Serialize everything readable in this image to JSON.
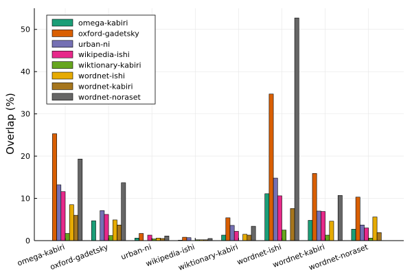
{
  "chart_data": {
    "type": "bar",
    "title": "",
    "xlabel": "",
    "ylabel": "Overlap (%)",
    "ylim": [
      0,
      55
    ],
    "yticks": [
      0,
      10,
      20,
      30,
      40,
      50
    ],
    "grid": true,
    "legend_position": "top-left",
    "categories": [
      "omega-kabiri",
      "oxford-gadetsky",
      "urban-ni",
      "wikipedia-ishi",
      "wiktionary-kabiri",
      "wordnet-ishi",
      "wordnet-kabiri",
      "wordnet-noraset"
    ],
    "series": [
      {
        "name": "omega-kabiri",
        "color": "#1b9e77",
        "values": [
          0,
          4.7,
          0.6,
          0.1,
          1.3,
          11.1,
          4.8,
          2.7
        ]
      },
      {
        "name": "oxford-gadetsky",
        "color": "#d95f02",
        "values": [
          25.3,
          0,
          1.7,
          0.8,
          5.4,
          34.7,
          15.9,
          10.3
        ]
      },
      {
        "name": "urban-ni",
        "color": "#7570b3",
        "values": [
          13.2,
          7.1,
          0,
          0.7,
          3.6,
          14.8,
          7.0,
          3.7
        ]
      },
      {
        "name": "wikipedia-ishi",
        "color": "#e7298a",
        "values": [
          11.6,
          6.2,
          1.3,
          0,
          2.2,
          10.6,
          6.9,
          3.0
        ]
      },
      {
        "name": "wiktionary-kabiri",
        "color": "#66a61e",
        "values": [
          1.7,
          1.2,
          0.4,
          0.2,
          0,
          2.5,
          1.3,
          0.6
        ]
      },
      {
        "name": "wordnet-ishi",
        "color": "#e6ab02",
        "values": [
          8.5,
          4.9,
          0.6,
          0.2,
          1.5,
          0,
          4.6,
          5.6
        ]
      },
      {
        "name": "wordnet-kabiri",
        "color": "#a6761d",
        "values": [
          6.0,
          3.7,
          0.5,
          0.2,
          1.3,
          7.6,
          0,
          1.9
        ]
      },
      {
        "name": "wordnet-noraset",
        "color": "#666666",
        "values": [
          19.3,
          13.7,
          1.1,
          0.5,
          3.4,
          52.7,
          10.7,
          0
        ]
      }
    ]
  }
}
